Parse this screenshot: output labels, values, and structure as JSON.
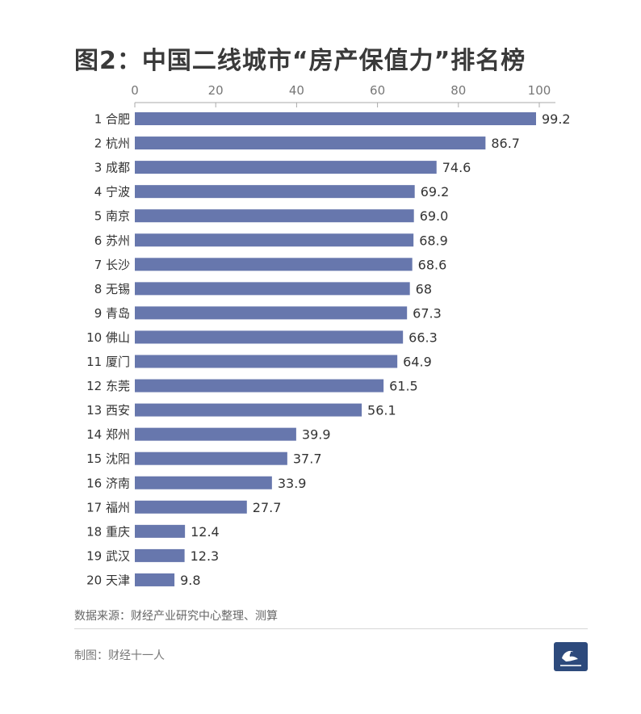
{
  "title": "图2：中国二线城市“房产保值力”排名榜",
  "source": "数据来源：财经产业研究中心整理、测算",
  "maker": "制图：财经十一人",
  "colors": {
    "bar": "#6777ad",
    "axis": "#aaaaaa",
    "logo": "#2d4a7c"
  },
  "logo": {
    "icon": "bird-logo-icon"
  },
  "chart_data": {
    "type": "bar",
    "orientation": "horizontal",
    "title": "图2：中国二线城市“房产保值力”排名榜",
    "xlim": [
      0,
      100
    ],
    "xticks": [
      0,
      20,
      40,
      60,
      80,
      100
    ],
    "axis_position": "top",
    "grid": false,
    "categories": [
      "1 合肥",
      "2 杭州",
      "3 成都",
      "4 宁波",
      "5 南京",
      "6 苏州",
      "7 长沙",
      "8 无锡",
      "9 青岛",
      "10 佛山",
      "11 厦门",
      "12 东莞",
      "13 西安",
      "14 郑州",
      "15 沈阳",
      "16 济南",
      "17 福州",
      "18 重庆",
      "19 武汉",
      "20 天津"
    ],
    "values": [
      99.2,
      86.7,
      74.6,
      69.2,
      69.0,
      68.9,
      68.6,
      68,
      67.3,
      66.3,
      64.9,
      61.5,
      56.1,
      39.9,
      37.7,
      33.9,
      27.7,
      12.4,
      12.3,
      9.8
    ],
    "value_labels": [
      "99.2",
      "86.7",
      "74.6",
      "69.2",
      "69.0",
      "68.9",
      "68.6",
      "68",
      "67.3",
      "66.3",
      "64.9",
      "61.5",
      "56.1",
      "39.9",
      "37.7",
      "33.9",
      "27.7",
      "12.4",
      "12.3",
      "9.8"
    ]
  }
}
